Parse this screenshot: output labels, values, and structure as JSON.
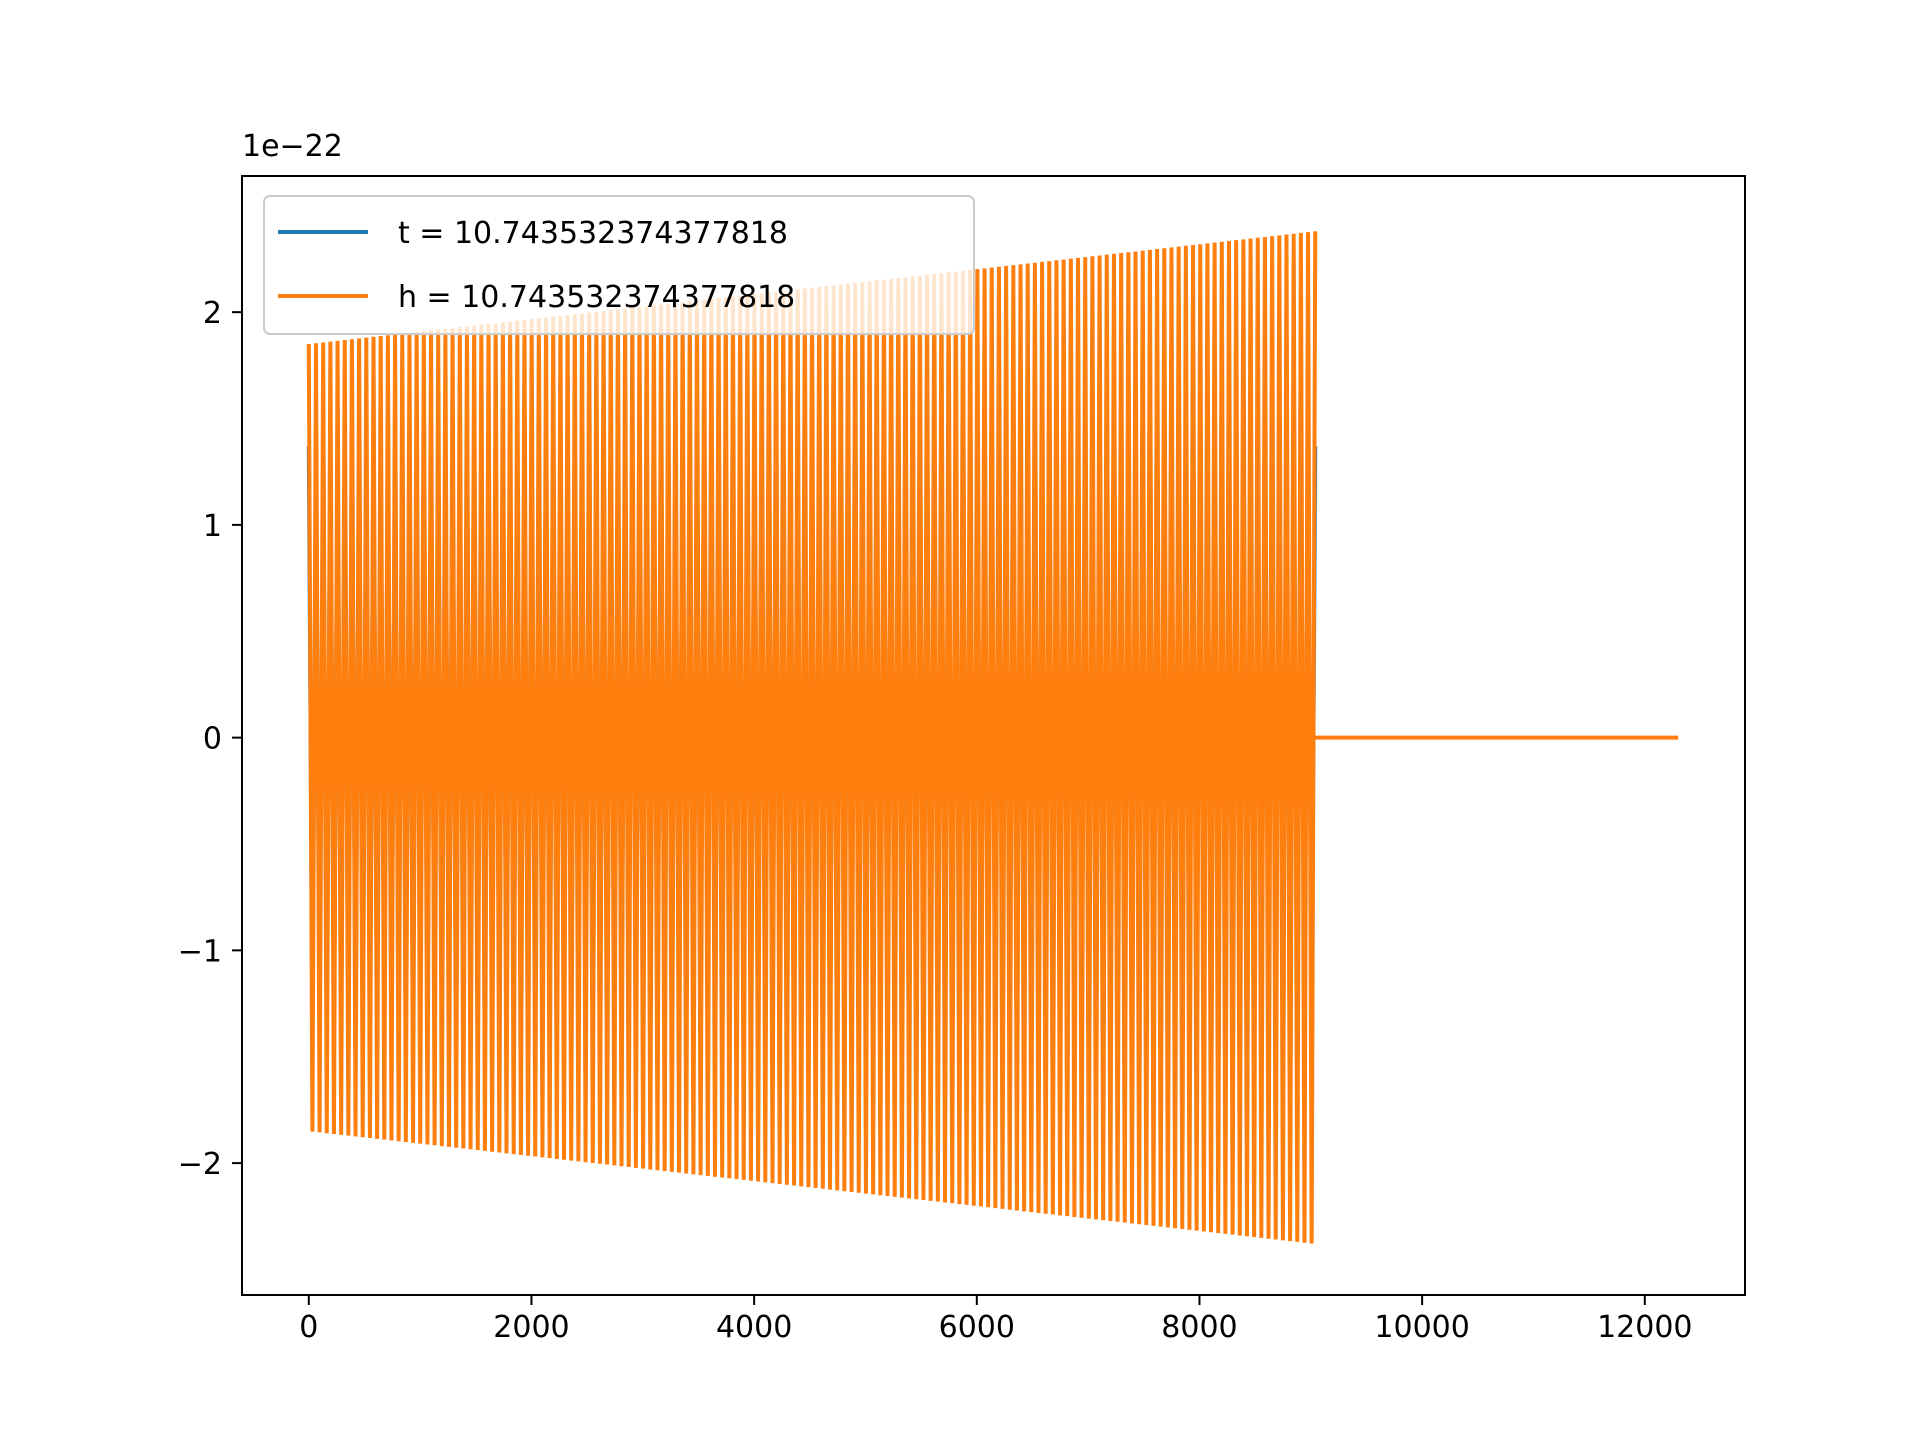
{
  "chart_data": {
    "type": "line",
    "title": "",
    "xlabel": "",
    "ylabel": "",
    "offset_text": "1e−22",
    "xlim": [
      -600,
      12900
    ],
    "ylim": [
      -2.62,
      2.64
    ],
    "xticks": [
      {
        "value": 0,
        "label": "0"
      },
      {
        "value": 2000,
        "label": "2000"
      },
      {
        "value": 4000,
        "label": "4000"
      },
      {
        "value": 6000,
        "label": "6000"
      },
      {
        "value": 8000,
        "label": "8000"
      },
      {
        "value": 10000,
        "label": "10000"
      },
      {
        "value": 12000,
        "label": "12000"
      }
    ],
    "yticks": [
      {
        "value": -2,
        "label": "−2"
      },
      {
        "value": -1,
        "label": "−1"
      },
      {
        "value": 0,
        "label": "0"
      },
      {
        "value": 1,
        "label": "1"
      },
      {
        "value": 2,
        "label": "2"
      }
    ],
    "grid": false,
    "legend_position": "upper-left",
    "series": [
      {
        "name": "t = 10.743532374377818",
        "color": "#1f77b4",
        "start_x": 0,
        "end_x": 9040,
        "amplitude_start": 1.37,
        "amplitude_end": 1.37,
        "offset": 0.0,
        "cycles": 140
      },
      {
        "name": "h = 10.743532374377818",
        "color": "#ff7f0e",
        "start_x": 0,
        "end_x": 9040,
        "tail_end_x": 12300,
        "amplitude_start": 1.85,
        "amplitude_end": 2.38,
        "offset": 0.0,
        "cycles": 140
      }
    ]
  }
}
